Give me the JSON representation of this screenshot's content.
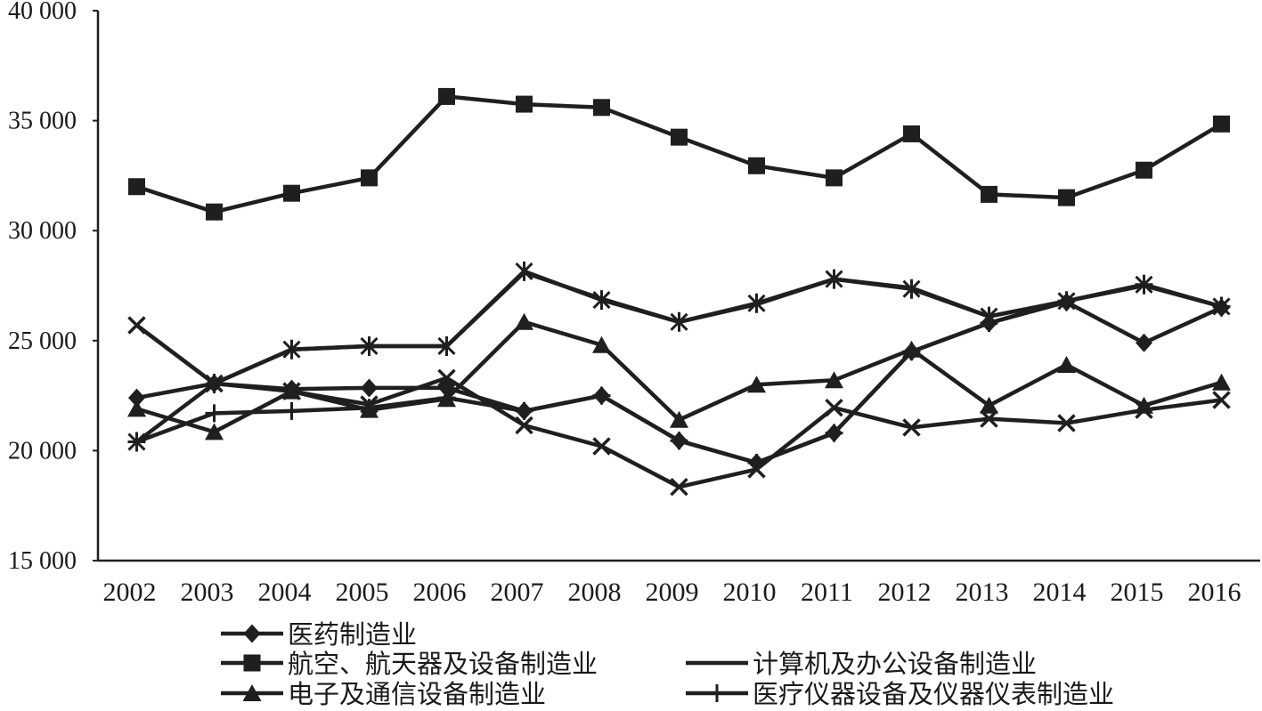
{
  "chart_data": {
    "type": "line",
    "categories": [
      "2002",
      "2003",
      "2004",
      "2005",
      "2006",
      "2007",
      "2008",
      "2009",
      "2010",
      "2011",
      "2012",
      "2013",
      "2014",
      "2015",
      "2016"
    ],
    "ylim": [
      15000,
      40000
    ],
    "yticks": [
      15000,
      20000,
      25000,
      30000,
      35000,
      40000
    ],
    "ytick_labels": [
      "15 000",
      "20 000",
      "25 000",
      "30 000",
      "35 000",
      "40 000"
    ],
    "grid": false,
    "legend": "bottom-left",
    "line_color": "#1f1f1f",
    "series": [
      {
        "name": "医药制造业",
        "marker": "diamond",
        "values": [
          22400,
          23050,
          22800,
          22850,
          22850,
          21800,
          22500,
          20450,
          19450,
          20800,
          24500,
          25800,
          26750,
          24900,
          26500
        ]
      },
      {
        "name": "航空、航天器及设备制造业",
        "marker": "square",
        "values": [
          32000,
          30850,
          31700,
          32400,
          36100,
          35750,
          35600,
          34250,
          32950,
          32400,
          34400,
          31650,
          31500,
          32750,
          34850
        ]
      },
      {
        "name": "计算机及办公设备制造业",
        "marker": "none",
        "values": [
          25700,
          23050,
          24600,
          24750,
          24750,
          28100,
          26900,
          25850,
          26650,
          27800,
          27400,
          26100,
          26800,
          27500,
          26550
        ]
      },
      {
        "name": "电子及通信设备制造业",
        "marker": "triangle",
        "values": [
          21900,
          20850,
          22700,
          21850,
          22350,
          25850,
          24800,
          21400,
          23000,
          23200,
          24600,
          22050,
          23900,
          22050,
          23100
        ]
      },
      {
        "name": "医疗仪器设备及仪器仪表制造业",
        "marker": "plus",
        "values": [
          20400,
          21700,
          21800,
          21950,
          22400,
          21800,
          22500,
          20450,
          19450,
          20800,
          24500,
          25800,
          26800,
          27550,
          26550
        ]
      },
      {
        "marker": "cross",
        "values": [
          25700,
          23050,
          22700,
          22100,
          23300,
          21150,
          20200,
          18350,
          19150,
          21950,
          21050,
          21450,
          21250,
          21850,
          22300
        ]
      },
      {
        "marker": "asterisk",
        "values": [
          20400,
          23050,
          24600,
          24750,
          24750,
          28150,
          26850,
          25850,
          26700,
          27800,
          27350,
          26100,
          26800,
          27550,
          26550
        ]
      }
    ]
  }
}
